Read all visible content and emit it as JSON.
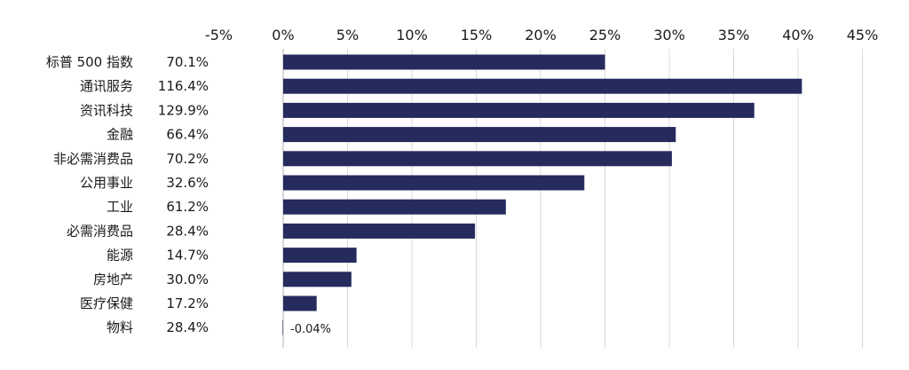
{
  "chart_data": {
    "type": "bar",
    "orientation": "horizontal",
    "categories": [
      "标普 500 指数",
      "通讯服务",
      "资讯科技",
      "金融",
      "非必需消费品",
      "公用事业",
      "工业",
      "必需消费品",
      "能源",
      "房地产",
      "医疗保健",
      "物料"
    ],
    "side_values": [
      "70.1%",
      "116.4%",
      "129.9%",
      "66.4%",
      "70.2%",
      "32.6%",
      "61.2%",
      "28.4%",
      "14.7%",
      "30.0%",
      "17.2%",
      "28.4%"
    ],
    "values": [
      25.0,
      40.3,
      36.6,
      30.5,
      30.2,
      23.4,
      17.3,
      14.9,
      5.7,
      5.3,
      2.6,
      -0.04
    ],
    "data_labels": [
      {
        "index": 11,
        "text": "-0.04%"
      }
    ],
    "xlim": [
      -5,
      45
    ],
    "xticks": [
      -5,
      0,
      5,
      10,
      15,
      20,
      25,
      30,
      35,
      40,
      45
    ],
    "xtick_labels": [
      "-5%",
      "0%",
      "5%",
      "10%",
      "15%",
      "20%",
      "25%",
      "30%",
      "35%",
      "40%",
      "45%"
    ],
    "x_axis_position": "top",
    "grid": true,
    "bar_color": "#262b5e",
    "title": "",
    "xlabel": "",
    "ylabel": ""
  }
}
